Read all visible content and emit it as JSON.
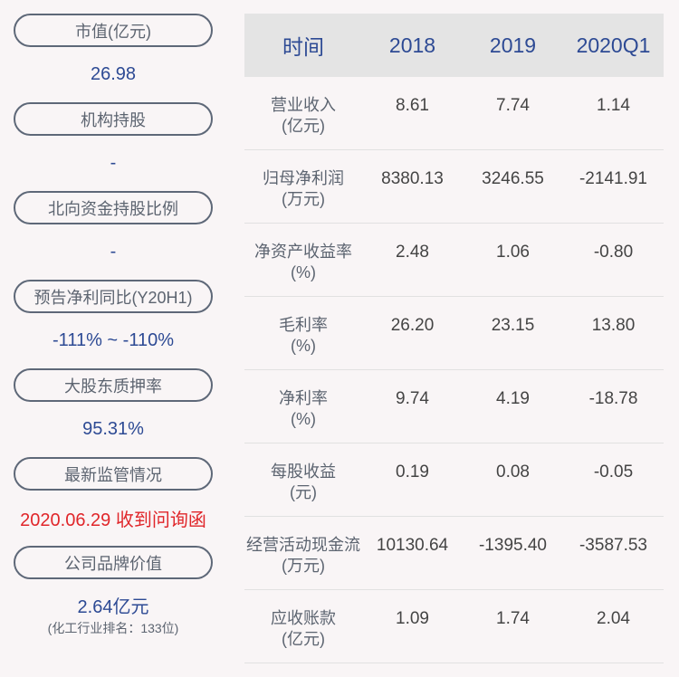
{
  "left_panel": {
    "items": [
      {
        "label": "市值(亿元)",
        "value": "26.98"
      },
      {
        "label": "机构持股",
        "value": "-"
      },
      {
        "label": "北向资金持股比例",
        "value": "-"
      },
      {
        "label": "预告净利同比(Y20H1)",
        "value": "-111% ~ -110%"
      },
      {
        "label": "大股东质押率",
        "value": "95.31%"
      },
      {
        "label": "最新监管情况",
        "value": "2020.06.29 收到问询函"
      },
      {
        "label": "公司品牌价值",
        "value": "2.64亿元",
        "sub": "(化工行业排名：133位)"
      }
    ]
  },
  "table": {
    "headers": [
      "时间",
      "2018",
      "2019",
      "2020Q1"
    ],
    "rows": [
      {
        "name": "营业收入",
        "unit": "(亿元)",
        "values": [
          "8.61",
          "7.74",
          "1.14"
        ]
      },
      {
        "name": "归母净利润",
        "unit": "(万元)",
        "values": [
          "8380.13",
          "3246.55",
          "-2141.91"
        ]
      },
      {
        "name": "净资产收益率",
        "unit": "(%)",
        "values": [
          "2.48",
          "1.06",
          "-0.80"
        ]
      },
      {
        "name": "毛利率",
        "unit": "(%)",
        "values": [
          "26.20",
          "23.15",
          "13.80"
        ]
      },
      {
        "name": "净利率",
        "unit": "(%)",
        "values": [
          "9.74",
          "4.19",
          "-18.78"
        ]
      },
      {
        "name": "每股收益",
        "unit": "(元)",
        "values": [
          "0.19",
          "0.08",
          "-0.05"
        ]
      },
      {
        "name": "经营活动现金流",
        "unit": "(万元)",
        "values": [
          "10130.64",
          "-1395.40",
          "-3587.53"
        ]
      },
      {
        "name": "应收账款",
        "unit": "(亿元)",
        "values": [
          "1.09",
          "1.74",
          "2.04"
        ]
      }
    ]
  },
  "colors": {
    "accent_blue": "#2d4a94",
    "alert_red": "#e0262a",
    "pill_border": "#5e6878",
    "header_bg": "#e4e4e4",
    "page_bg": "#f9f5f6"
  }
}
